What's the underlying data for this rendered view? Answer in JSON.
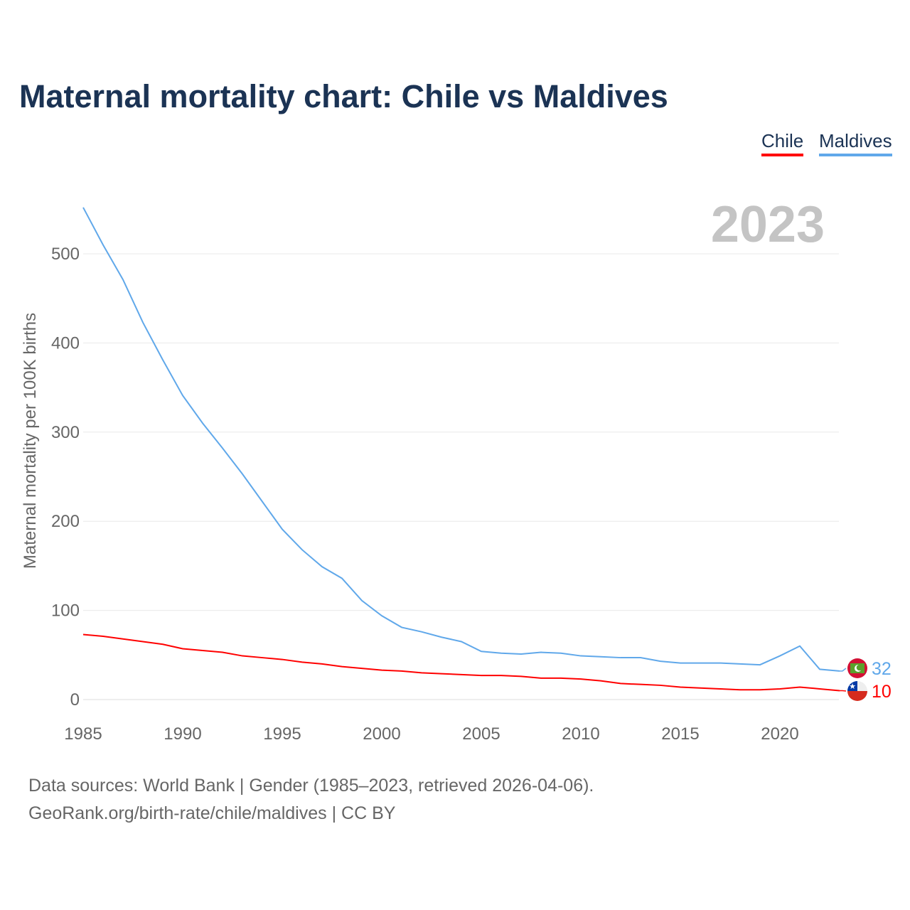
{
  "title": "Maternal mortality chart: Chile vs Maldives",
  "footer": {
    "line1": "Data sources: World Bank | Gender (1985–2023, retrieved 2026-04-06).",
    "line2": "GeoRank.org/birth-rate/chile/maldives | CC BY"
  },
  "chart_data": {
    "type": "line",
    "title": "Maternal mortality chart: Chile vs Maldives",
    "year_label": "2023",
    "xlabel": "",
    "ylabel": "Maternal mortality per 100K births",
    "xlim": [
      1985,
      2023
    ],
    "ylim": [
      0,
      560
    ],
    "xticks": [
      1985,
      1990,
      1995,
      2000,
      2005,
      2010,
      2015,
      2020
    ],
    "yticks": [
      0,
      100,
      200,
      300,
      400,
      500
    ],
    "grid": true,
    "legend": "top-right",
    "x": [
      1985,
      1986,
      1987,
      1988,
      1989,
      1990,
      1991,
      1992,
      1993,
      1994,
      1995,
      1996,
      1997,
      1998,
      1999,
      2000,
      2001,
      2002,
      2003,
      2004,
      2005,
      2006,
      2007,
      2008,
      2009,
      2010,
      2011,
      2012,
      2013,
      2014,
      2015,
      2016,
      2017,
      2018,
      2019,
      2020,
      2021,
      2022,
      2023
    ],
    "series": [
      {
        "name": "Chile",
        "color": "#ff0000",
        "end_label": "10",
        "values": [
          73,
          71,
          68,
          65,
          62,
          57,
          55,
          53,
          49,
          47,
          45,
          42,
          40,
          37,
          35,
          33,
          32,
          30,
          29,
          28,
          27,
          27,
          26,
          24,
          24,
          23,
          21,
          18,
          17,
          16,
          14,
          13,
          12,
          11,
          11,
          12,
          14,
          12,
          10
        ]
      },
      {
        "name": "Maldives",
        "color": "#60a8ea",
        "end_label": "32",
        "values": [
          552,
          510,
          471,
          423,
          381,
          341,
          310,
          282,
          253,
          222,
          191,
          168,
          149,
          136,
          111,
          94,
          81,
          76,
          70,
          65,
          54,
          52,
          51,
          53,
          52,
          49,
          48,
          47,
          47,
          43,
          41,
          41,
          41,
          40,
          39,
          49,
          60,
          34,
          32
        ]
      }
    ]
  }
}
